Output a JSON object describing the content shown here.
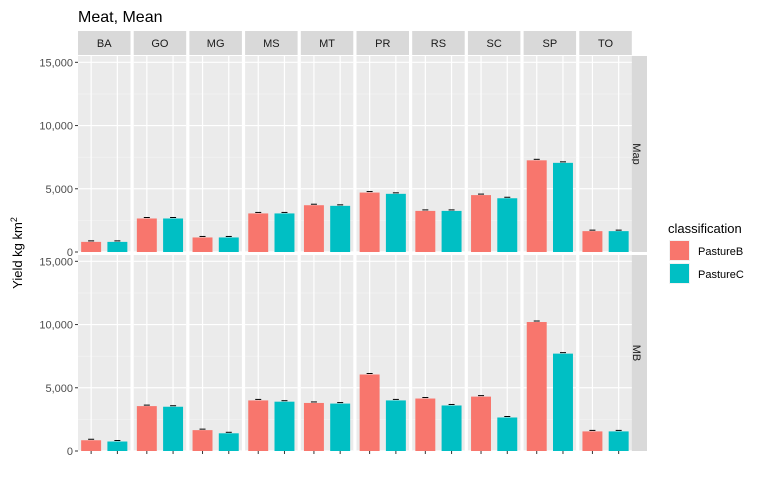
{
  "chart_data": {
    "type": "bar",
    "title": "Meat, Mean",
    "ylabel": "Yield kg km",
    "ylabel_superscript": "2",
    "xlabel": "",
    "ylim": [
      0,
      15500
    ],
    "yticks": [
      0,
      5000,
      10000,
      15000
    ],
    "ytick_labels": [
      "0",
      "5,000",
      "10,000",
      "15,000"
    ],
    "grid": true,
    "legend": {
      "title": "classification",
      "position": "right",
      "entries": [
        {
          "name": "PastureB",
          "color": "#F8766D"
        },
        {
          "name": "PastureC",
          "color": "#00BFC4"
        }
      ]
    },
    "facet_columns": [
      "BA",
      "GO",
      "MG",
      "MS",
      "MT",
      "PR",
      "RS",
      "SC",
      "SP",
      "TO"
    ],
    "facet_rows": [
      "Map",
      "MB"
    ],
    "panels": [
      {
        "row": "Map",
        "series": [
          {
            "name": "PastureB",
            "values": [
              800,
              2650,
              1150,
              3050,
              3700,
              4700,
              3250,
              4500,
              7250,
              1650
            ]
          },
          {
            "name": "PastureC",
            "values": [
              800,
              2650,
              1150,
              3050,
              3650,
              4600,
              3250,
              4250,
              7050,
              1650
            ]
          }
        ]
      },
      {
        "row": "MB",
        "series": [
          {
            "name": "PastureB",
            "values": [
              850,
              3550,
              1650,
              4000,
              3800,
              6050,
              4150,
              4300,
              10200,
              1550
            ]
          },
          {
            "name": "PastureC",
            "values": [
              750,
              3500,
              1400,
              3900,
              3750,
              4000,
              3600,
              2650,
              7700,
              1550
            ]
          }
        ]
      }
    ]
  }
}
